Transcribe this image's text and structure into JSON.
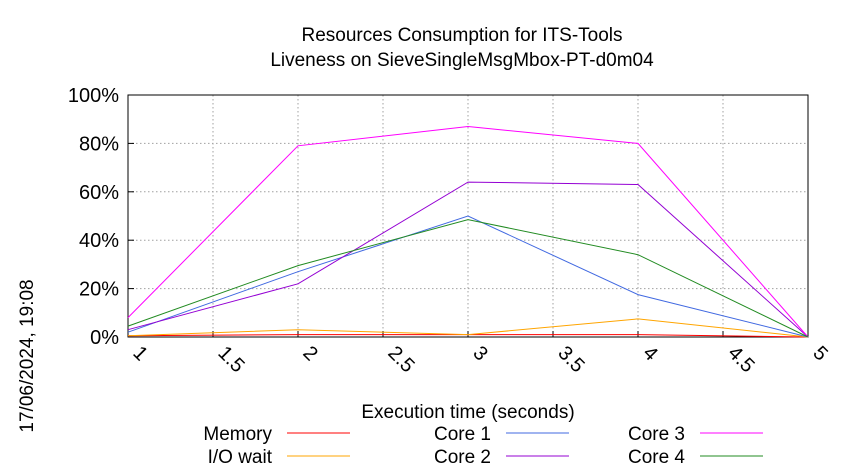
{
  "chart_data": {
    "type": "line",
    "title": "Resources Consumption for ITS-Tools",
    "subtitle": "Liveness on SieveSingleMsgMbox-PT-d0m04",
    "xlabel": "Execution time (seconds)",
    "ylabel": "",
    "side_label": "17/06/2024, 19:08",
    "xlim": [
      1,
      5
    ],
    "ylim": [
      0,
      100
    ],
    "x_ticks": [
      "1",
      "1.5",
      "2",
      "2.5",
      "3",
      "3.5",
      "4",
      "4.5",
      "5"
    ],
    "y_ticks": [
      "0%",
      "20%",
      "40%",
      "60%",
      "80%",
      "100%"
    ],
    "grid": true,
    "legend_position": "bottom",
    "x": [
      1,
      2,
      3,
      4,
      5
    ],
    "series": [
      {
        "name": "Memory",
        "color": "#ff0000",
        "values": [
          0.5,
          1,
          1,
          1,
          0
        ]
      },
      {
        "name": "I/O wait",
        "color": "#ffa500",
        "values": [
          0.5,
          3,
          1,
          7.5,
          0
        ]
      },
      {
        "name": "Core 1",
        "color": "#4169e1",
        "values": [
          2,
          27,
          50,
          17.5,
          0
        ]
      },
      {
        "name": "Core 2",
        "color": "#9400d3",
        "values": [
          3,
          22,
          64,
          63,
          0
        ]
      },
      {
        "name": "Core 3",
        "color": "#ff00ff",
        "values": [
          8,
          79,
          87,
          80,
          0
        ]
      },
      {
        "name": "Core 4",
        "color": "#228b22",
        "values": [
          4.5,
          29.5,
          48.5,
          34,
          0
        ]
      }
    ]
  }
}
